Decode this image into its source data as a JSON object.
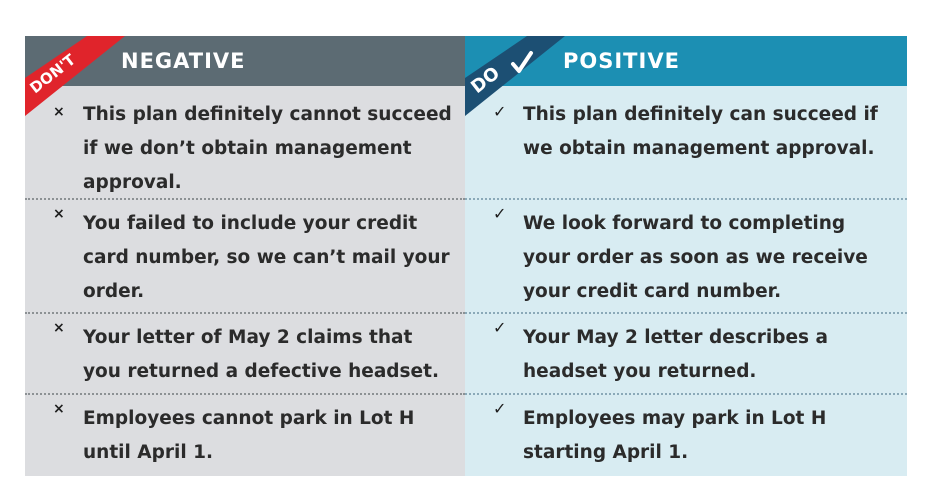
{
  "negative": {
    "tag": "DON'T",
    "title": "NEGATIVE",
    "mark": "×",
    "rows": [
      "This plan definitely cannot succeed if we don’t obtain management approval.",
      "You failed to include your credit card number, so we can’t mail your order.",
      "Your letter of May 2 claims that you returned a defective headset.",
      "Employees cannot park in Lot H until April 1."
    ]
  },
  "positive": {
    "tag": "DO",
    "title": "POSITIVE",
    "mark": "✓",
    "rows": [
      "This plan definitely can succeed if we obtain management approval.",
      "We look forward to completing your order as soon as we receive your credit card number.",
      "Your May 2 letter describes a headset you returned.",
      "Employees may park in Lot H starting April 1."
    ]
  },
  "colors": {
    "negative_header": "#5c6b73",
    "negative_body": "#dcdde0",
    "negative_tag": "#e0242b",
    "positive_header": "#1c8fb3",
    "positive_body": "#d8ecf2",
    "positive_tag": "#1c4f73"
  }
}
